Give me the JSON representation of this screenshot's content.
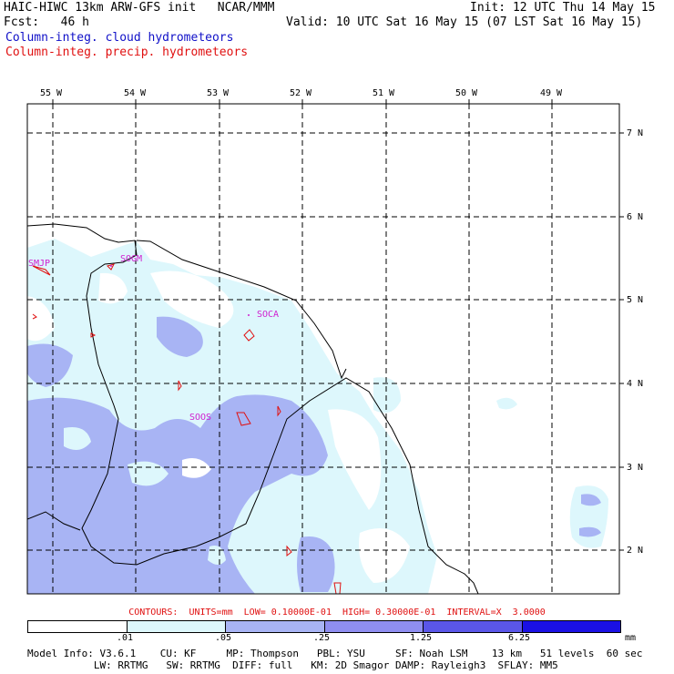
{
  "header": {
    "left_line1": "HAIC-HIWC 13km ARW-GFS init   NCAR/MMM",
    "left_line2": "Fcst:   46 h",
    "right_line1": "Init: 12 UTC Thu 14 May 15",
    "right_line2": "Valid: 10 UTC Sat 16 May 15 (07 LST Sat 16 May 15)",
    "field1": "Column-integ. cloud hydrometeors",
    "field2": "Column-integ. precip. hydrometeors"
  },
  "longitudes": [
    "55 W",
    "54 W",
    "53 W",
    "52 W",
    "51 W",
    "50 W",
    "49 W"
  ],
  "latitudes": [
    "7 N",
    "6 N",
    "5 N",
    "4 N",
    "3 N",
    "2 N"
  ],
  "stations": [
    "SMJP",
    "SOGM",
    "SOCA",
    "SOOS"
  ],
  "contours": "CONTOURS:  UNITS=mm  LOW= 0.10000E-01  HIGH= 0.30000E-01  INTERVAL=X  3.0000",
  "legend": {
    "ticks": [
      ".01",
      ".05",
      ".25",
      "1.25",
      "6.25"
    ],
    "units": "mm",
    "colors": [
      "#ffffff",
      "#ddf7fc",
      "#a8b4f4",
      "#8f8ef0",
      "#5a56e8",
      "#1a10e4"
    ]
  },
  "model_info": {
    "line1": "Model Info: V3.6.1    CU: KF     MP: Thompson   PBL: YSU     SF: Noah LSM    13 km   51 levels  60 sec",
    "line2": "           LW: RRTMG   SW: RRTMG  DIFF: full   KM: 2D Smagor DAMP: Rayleigh3  SFLAY: MM5"
  },
  "colors": {
    "light_cloud": "#ddf7fc",
    "medium_cloud": "#a8b4f4",
    "precip_contour": "#e01010",
    "station_label": "#d020d0",
    "title_blue": "#1010c8",
    "title_red": "#e01010"
  }
}
